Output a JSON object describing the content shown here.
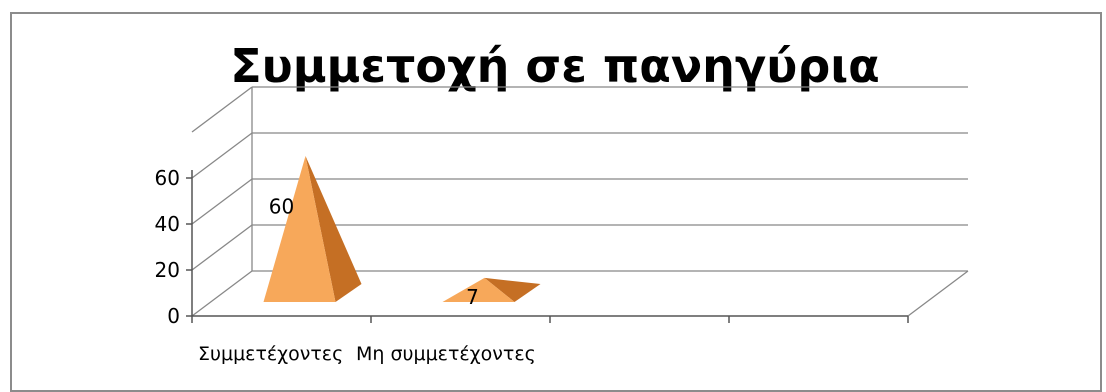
{
  "chart_data": {
    "type": "bar",
    "shape": "pyramid-3d",
    "title": "Συμμετοχή σε πανηγύρια",
    "xlabel": "",
    "ylabel": "",
    "categories": [
      "Συμμετέχοντες",
      "Μη συμμετέχοντες"
    ],
    "values": [
      60,
      7
    ],
    "data_labels": [
      "60",
      "7"
    ],
    "ylim": [
      0,
      60
    ],
    "y_ticks": [
      "0",
      "20",
      "40",
      "60"
    ],
    "grid": true,
    "legend": "none",
    "colors": {
      "front": "#f7a85a",
      "side": "#c56f24",
      "frame": "#8c8c8c",
      "grid": "#888888"
    }
  }
}
